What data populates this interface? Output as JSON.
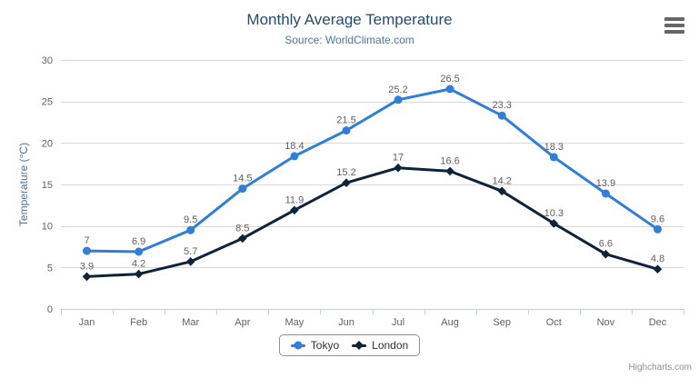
{
  "credits": "Highcharts.com",
  "export_menu_icon": "hamburger-icon",
  "chart_data": {
    "type": "line",
    "title": "Monthly Average Temperature",
    "subtitle": "Source: WorldClimate.com",
    "xlabel": "",
    "ylabel": "Temperature (°C)",
    "ylim": [
      0,
      30
    ],
    "ytick_interval": 5,
    "grid": true,
    "data_labels": true,
    "legend_position": "bottom",
    "categories": [
      "Jan",
      "Feb",
      "Mar",
      "Apr",
      "May",
      "Jun",
      "Jul",
      "Aug",
      "Sep",
      "Oct",
      "Nov",
      "Dec"
    ],
    "series": [
      {
        "name": "Tokyo",
        "color": "#2f7ed8",
        "marker": "circle",
        "values": [
          7,
          6.9,
          9.5,
          14.5,
          18.4,
          21.5,
          25.2,
          26.5,
          23.3,
          18.3,
          13.9,
          9.6
        ]
      },
      {
        "name": "London",
        "color": "#0d233a",
        "marker": "diamond",
        "values": [
          3.9,
          4.2,
          5.7,
          8.5,
          11.9,
          15.2,
          17,
          16.6,
          14.2,
          10.3,
          6.6,
          4.8
        ]
      }
    ],
    "colors": {
      "title": "#274b6d",
      "subtitle": "#4d759e",
      "y_title": "#4d759e",
      "axis_label": "#606060",
      "data_label": "#606060",
      "grid": "#d8d8d8",
      "axis_line": "#c0d0e0",
      "legend_text": "#333333",
      "credits": "#909090",
      "hamburger": "#666666"
    }
  }
}
